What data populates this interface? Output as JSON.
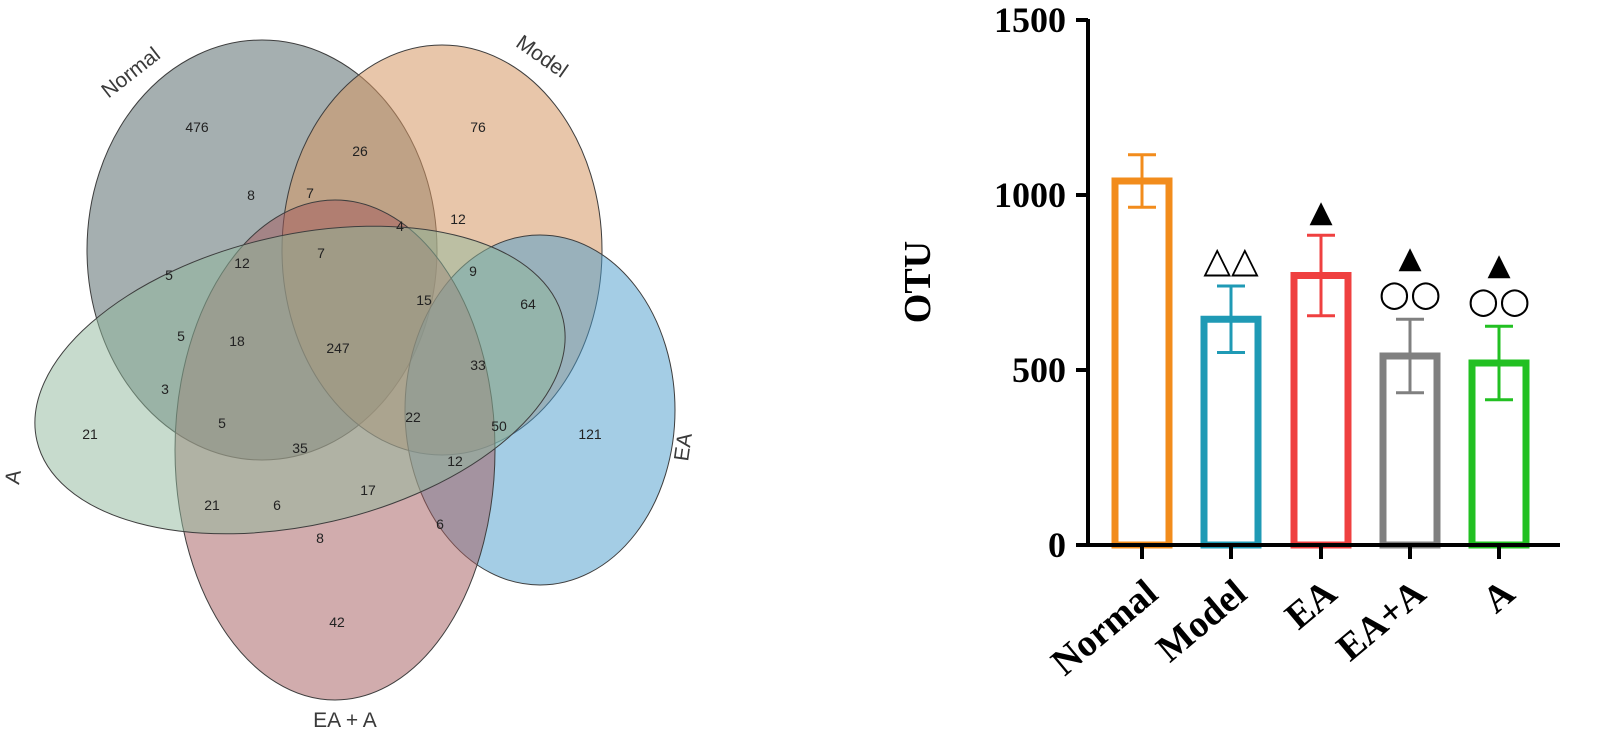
{
  "chart_data": [
    {
      "type": "venn",
      "sets": [
        {
          "name": "Normal",
          "color": "#5b6d70"
        },
        {
          "name": "Model",
          "color": "#d59764"
        },
        {
          "name": "EA",
          "color": "#4a9ccb"
        },
        {
          "name": "EA + A",
          "color": "#a35a5c"
        },
        {
          "name": "A",
          "color": "#8fb79c"
        }
      ],
      "set_labels": [
        "Normal",
        "Model",
        "EA",
        "EA + A",
        "A"
      ],
      "counts": [
        "476",
        "76",
        "121",
        "42",
        "21",
        "26",
        "8",
        "7",
        "4",
        "12",
        "7",
        "12",
        "5",
        "9",
        "15",
        "64",
        "5",
        "18",
        "247",
        "33",
        "3",
        "5",
        "22",
        "50",
        "35",
        "12",
        "21",
        "6",
        "17",
        "6",
        "8"
      ]
    },
    {
      "type": "bar",
      "categories": [
        "Normal",
        "Model",
        "EA",
        "EA+A",
        "A"
      ],
      "values": [
        1040,
        645,
        770,
        540,
        520
      ],
      "errors": [
        75,
        95,
        115,
        105,
        105
      ],
      "colors": [
        "#f28c1c",
        "#1f9ab5",
        "#ef4040",
        "#808080",
        "#22c022"
      ],
      "ylabel": "OTU",
      "ylim": [
        0,
        1500
      ],
      "yticks": [
        "0",
        "500",
        "1000",
        "1500"
      ],
      "annotations": {
        "Model": [
          "△△"
        ],
        "EA": [
          "▲"
        ],
        "EA+A": [
          "▲",
          "○○"
        ],
        "A": [
          "▲",
          "○○"
        ]
      }
    }
  ]
}
